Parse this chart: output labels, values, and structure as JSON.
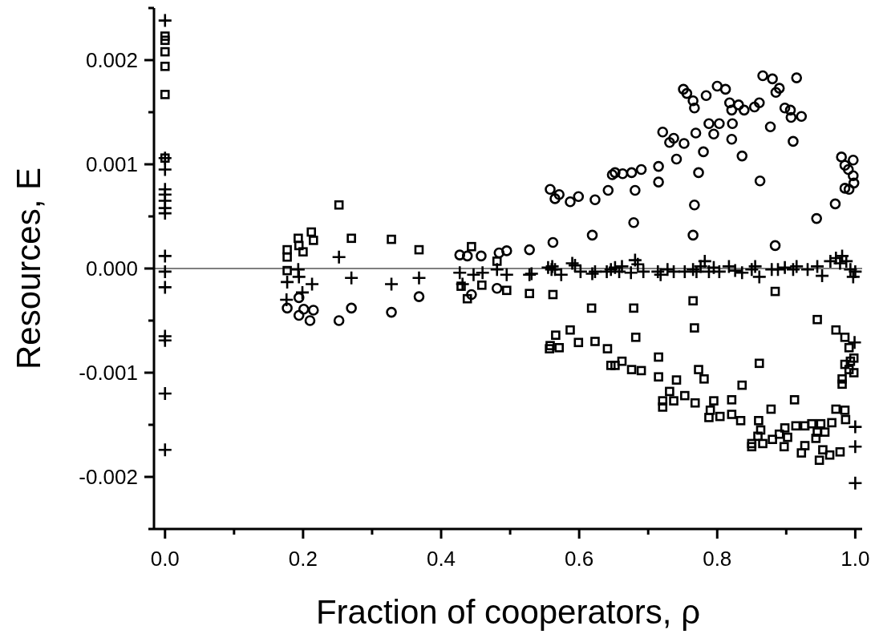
{
  "chart_data": {
    "type": "scatter",
    "xlabel": "Fraction of cooperators, ρ",
    "ylabel": "Resources, E",
    "xlim": [
      -0.016,
      1.01
    ],
    "ylim": [
      -0.0025,
      0.0025
    ],
    "xticks": [
      {
        "value": 0,
        "label": "0.0"
      },
      {
        "value": 0.1,
        "label": null
      },
      {
        "value": 0.2,
        "label": "0.2"
      },
      {
        "value": 0.3,
        "label": null
      },
      {
        "value": 0.4,
        "label": "0.4"
      },
      {
        "value": 0.5,
        "label": null
      },
      {
        "value": 0.6,
        "label": "0.6"
      },
      {
        "value": 0.7,
        "label": null
      },
      {
        "value": 0.8,
        "label": "0.8"
      },
      {
        "value": 0.9,
        "label": null
      },
      {
        "value": 1,
        "label": "1.0"
      }
    ],
    "yticks": [
      {
        "value": -0.0025,
        "label": null
      },
      {
        "value": -0.002,
        "label": "-0.002"
      },
      {
        "value": -0.0015,
        "label": null
      },
      {
        "value": -0.001,
        "label": "-0.001"
      },
      {
        "value": -0.0005,
        "label": null
      },
      {
        "value": 0,
        "label": "0.000"
      },
      {
        "value": 0.0005,
        "label": null
      },
      {
        "value": 0.001,
        "label": "0.001"
      },
      {
        "value": 0.0015,
        "label": null
      },
      {
        "value": 0.002,
        "label": "0.002"
      },
      {
        "value": 0.0025,
        "label": null
      }
    ],
    "grid": false,
    "ref_lines": [
      {
        "axis": "y",
        "value": 0,
        "color": "#000000"
      }
    ],
    "series": [
      {
        "color": "#000000",
        "marker": "circle",
        "x": [
          0.194,
          0.194,
          0.201,
          0.215,
          0.21,
          0.252,
          0.27,
          0.328,
          0.368,
          0.177,
          0.427,
          0.438,
          0.458,
          0.444,
          0.481,
          0.484,
          0.495,
          0.528,
          0.562,
          0.558,
          0.571,
          0.565,
          0.587,
          0.599,
          0.623,
          0.619,
          0.642,
          0.648,
          0.652,
          0.663,
          0.676,
          0.69,
          0.681,
          0.679,
          0.715,
          0.715,
          0.721,
          0.737,
          0.731,
          0.752,
          0.741,
          0.769,
          0.78,
          0.773,
          0.767,
          0.765,
          0.788,
          0.795,
          0.803,
          0.821,
          0.822,
          0.836,
          0.862,
          0.877,
          0.91,
          0.884,
          0.944,
          0.971,
          0.98,
          0.997,
          0.985,
          0.99,
          0.997,
          0.998,
          0.985,
          0.991,
          0.751,
          0.756,
          0.765,
          0.767,
          0.784,
          0.8,
          0.812,
          0.818,
          0.821,
          0.831,
          0.839,
          0.854,
          0.861,
          0.866,
          0.88,
          0.885,
          0.89,
          0.898,
          0.906,
          0.915,
          0.907,
          0.922
        ],
        "values": [
          -0.00028,
          -0.00045,
          -0.00039,
          -0.0004,
          -0.0005,
          -0.0005,
          -0.00038,
          -0.00042,
          -0.00027,
          -0.00038,
          0.00013,
          0.00012,
          0.00012,
          -0.00025,
          -0.00019,
          0.00015,
          0.00017,
          0.00018,
          0.00025,
          0.00076,
          0.00071,
          0.00067,
          0.00064,
          0.00069,
          0.00066,
          0.00032,
          0.00075,
          0.0009,
          0.00092,
          0.00091,
          0.00092,
          0.00095,
          0.00075,
          0.00044,
          0.00098,
          0.00083,
          0.00131,
          0.00125,
          0.00121,
          0.0012,
          0.00105,
          0.0013,
          0.00112,
          0.00092,
          0.00061,
          0.00032,
          0.00139,
          0.00129,
          0.00139,
          0.00124,
          0.00139,
          0.00108,
          0.00084,
          0.00136,
          0.00122,
          0.00022,
          0.00048,
          0.00062,
          0.00107,
          0.00104,
          0.00099,
          0.00095,
          0.00089,
          0.00082,
          0.00077,
          0.00076,
          0.00172,
          0.00168,
          0.00161,
          0.00154,
          0.00166,
          0.00175,
          0.00172,
          0.00159,
          0.00152,
          0.00157,
          0.00152,
          0.00155,
          0.00159,
          0.00185,
          0.00182,
          0.00169,
          0.00173,
          0.00154,
          0.00152,
          0.00183,
          0.00145,
          0.00146
        ]
      },
      {
        "color": "#000000",
        "marker": "square",
        "x": [
          0,
          0,
          0,
          0,
          0,
          0,
          0.252,
          0.177,
          0.177,
          0.193,
          0.194,
          0.2,
          0.212,
          0.215,
          0.27,
          0.328,
          0.368,
          0.177,
          0.444,
          0.481,
          0.429,
          0.438,
          0.459,
          0.495,
          0.528,
          0.562,
          0.618,
          0.679,
          0.765,
          0.884,
          0.767,
          0.945,
          0.566,
          0.558,
          0.557,
          0.571,
          0.587,
          0.599,
          0.623,
          0.641,
          0.682,
          0.646,
          0.652,
          0.662,
          0.676,
          0.69,
          0.715,
          0.715,
          0.741,
          0.731,
          0.721,
          0.721,
          0.737,
          0.753,
          0.768,
          0.773,
          0.781,
          0.795,
          0.79,
          0.788,
          0.804,
          0.821,
          0.821,
          0.834,
          0.836,
          0.861,
          0.86,
          0.863,
          0.859,
          0.85,
          0.85,
          0.866,
          0.878,
          0.88,
          0.89,
          0.898,
          0.897,
          0.902,
          0.912,
          0.914,
          0.927,
          0.922,
          0.927,
          0.937,
          0.945,
          0.943,
          0.95,
          0.956,
          0.953,
          0.948,
          0.963,
          0.966,
          0.978,
          0.972,
          0.985,
          0.986,
          0.972,
          0.985,
          0.991,
          0.998,
          0.993,
          0.985,
          0.991,
          0.998,
          0.981,
          0.981
        ],
        "values": [
          0.00223,
          0.00219,
          0.00208,
          0.00194,
          0.00167,
          0.00106,
          0.00061,
          0.00018,
          0.00011,
          0.00029,
          0.00022,
          0.00016,
          0.00035,
          0.00027,
          0.00029,
          0.00028,
          0.00018,
          -2e-05,
          0.00021,
          7e-05,
          -0.00017,
          -0.00029,
          -0.00016,
          -0.00021,
          -0.00024,
          -0.00025,
          -0.00038,
          -0.00038,
          -0.00031,
          -0.00022,
          -0.00057,
          -0.00049,
          -0.00064,
          -0.00074,
          -0.00077,
          -0.00076,
          -0.00059,
          -0.00071,
          -0.0007,
          -0.00077,
          -0.00066,
          -0.00093,
          -0.00093,
          -0.00089,
          -0.00097,
          -0.00098,
          -0.00085,
          -0.00104,
          -0.00107,
          -0.00118,
          -0.00127,
          -0.00133,
          -0.00127,
          -0.00122,
          -0.00129,
          -0.00097,
          -0.00106,
          -0.00127,
          -0.00136,
          -0.00143,
          -0.00142,
          -0.00126,
          -0.0014,
          -0.00146,
          -0.00112,
          -0.00091,
          -0.00146,
          -0.00155,
          -0.00161,
          -0.00168,
          -0.00171,
          -0.00168,
          -0.00135,
          -0.00164,
          -0.00159,
          -0.00153,
          -0.00171,
          -0.00162,
          -0.00126,
          -0.00151,
          -0.0017,
          -0.00177,
          -0.00151,
          -0.00149,
          -0.00157,
          -0.00163,
          -0.00149,
          -0.00157,
          -0.00174,
          -0.00184,
          -0.00179,
          -0.00148,
          -0.00176,
          -0.00135,
          -0.00136,
          -0.00145,
          -0.00059,
          -0.00066,
          -0.00076,
          -0.00086,
          -0.00089,
          -0.00092,
          -0.00097,
          -0.001,
          -0.00106,
          -0.00111
        ]
      },
      {
        "color": "#000000",
        "marker": "cross",
        "x": [
          0,
          0,
          0,
          0,
          0,
          0,
          0,
          0,
          0,
          0,
          0,
          0,
          0,
          0,
          0,
          0.252,
          0.193,
          0.194,
          0.177,
          0.213,
          0.199,
          0.176,
          0.27,
          0.328,
          0.368,
          0.427,
          0.447,
          0.46,
          0.481,
          0.495,
          0.528,
          0.56,
          0.431,
          0.531,
          0.555,
          0.561,
          0.565,
          0.574,
          0.59,
          0.594,
          0.602,
          0.619,
          0.623,
          0.64,
          0.646,
          0.652,
          0.658,
          0.662,
          0.675,
          0.681,
          0.685,
          0.693,
          0.714,
          0.718,
          0.728,
          0.737,
          0.753,
          0.765,
          0.77,
          0.776,
          0.782,
          0.788,
          0.795,
          0.803,
          0.817,
          0.826,
          0.836,
          0.85,
          0.855,
          0.861,
          0.879,
          0.888,
          0.898,
          0.91,
          0.915,
          0.931,
          0.945,
          0.952,
          0.964,
          0.972,
          0.978,
          0.981,
          0.987,
          0.993,
          0.997,
          1,
          0.999,
          1,
          1,
          1
        ],
        "values": [
          0.00238,
          0.00106,
          0.00095,
          0.00076,
          0.00071,
          0.00065,
          0.00058,
          0.00053,
          0.00012,
          -3e-05,
          -0.00018,
          -0.00065,
          -0.00069,
          -0.0012,
          -0.00174,
          0.00011,
          -1e-05,
          -8e-05,
          -0.00013,
          -0.00015,
          -0.00023,
          -0.0003,
          -9e-05,
          -0.00015,
          -9e-05,
          -4e-05,
          -6e-05,
          -4e-05,
          -1e-05,
          -6e-05,
          -6e-05,
          -1e-05,
          -0.00015,
          -5e-05,
          1e-05,
          2e-05,
          -1e-05,
          -6e-05,
          5e-05,
          3e-05,
          -3e-05,
          -5e-05,
          -3e-05,
          -3e-05,
          -1e-05,
          1e-05,
          -3e-05,
          2e-05,
          -4e-05,
          8e-05,
          4e-05,
          -3e-05,
          -3e-05,
          -6e-05,
          -1e-05,
          -3e-05,
          -3e-05,
          -1e-05,
          -3e-05,
          2e-05,
          7e-05,
          -3e-05,
          1e-05,
          -3e-05,
          2e-05,
          -2e-05,
          -4e-05,
          -1e-05,
          2e-05,
          -8e-05,
          -1e-05,
          -1e-05,
          1e-05,
          -1e-05,
          2e-05,
          -1e-05,
          2e-05,
          -7e-05,
          7e-05,
          0.0001,
          5e-05,
          0.00012,
          7e-05,
          -1e-05,
          -8e-05,
          -3e-05,
          -0.00071,
          -0.00152,
          -0.00171,
          -0.00206
        ]
      }
    ]
  }
}
